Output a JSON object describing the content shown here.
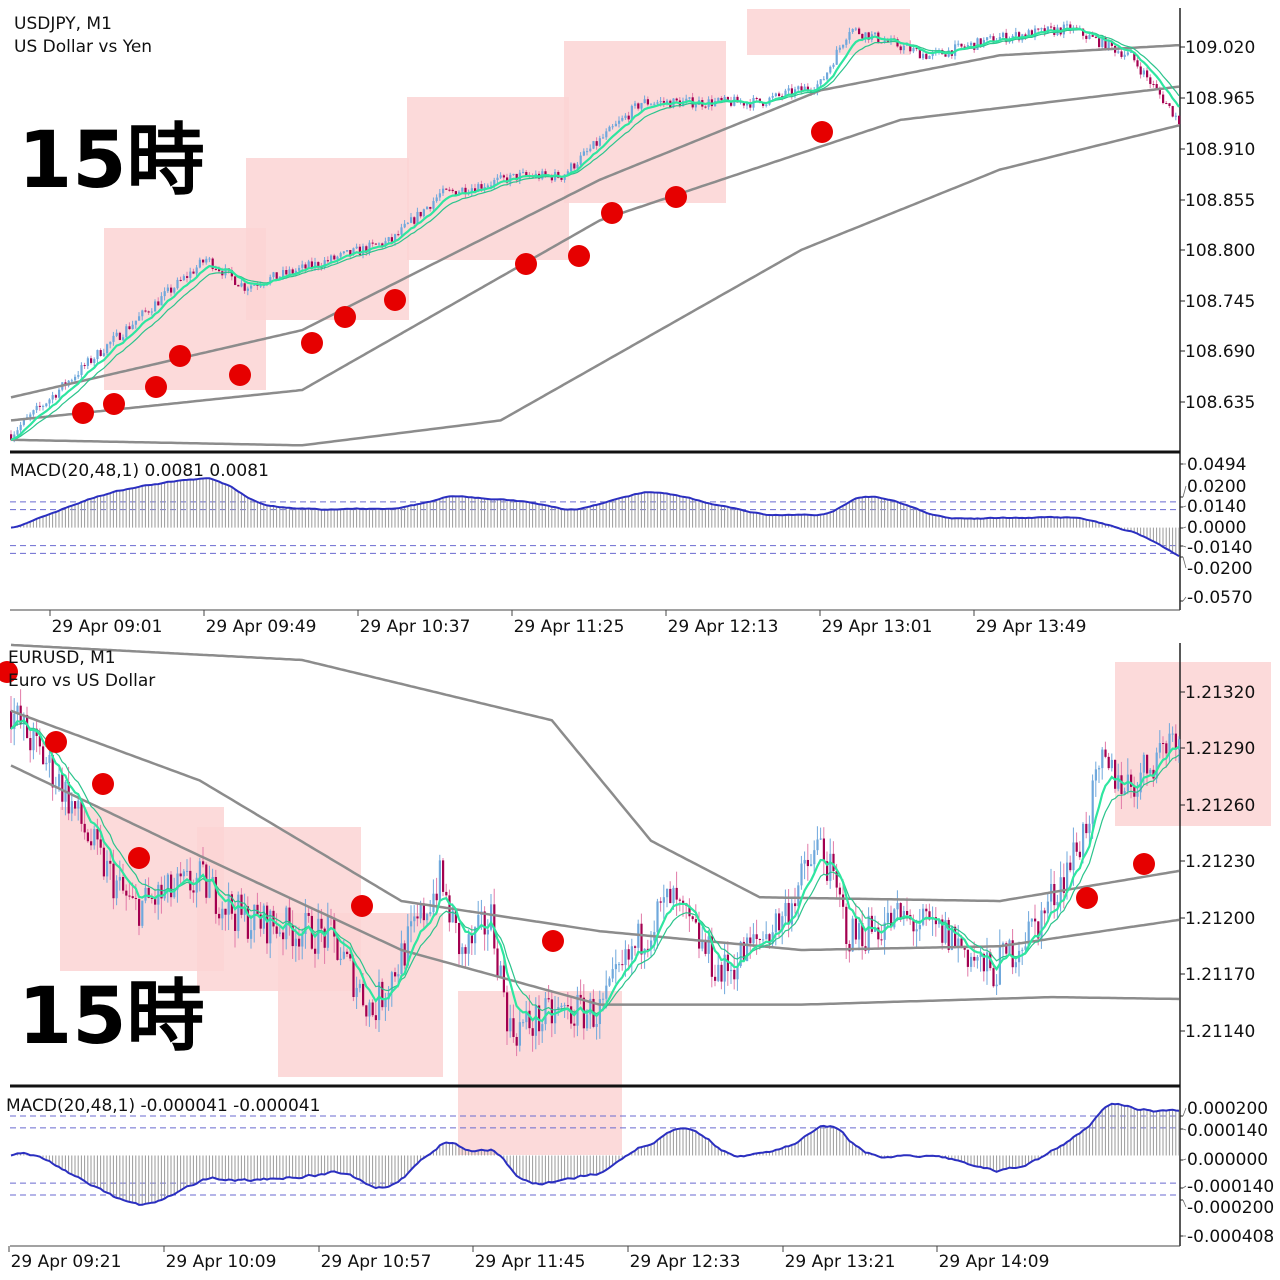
{
  "colors": {
    "up": "#6fa8dc",
    "down": "#a3004f",
    "wick_down": "#e27aa8",
    "ma_fast": "#2ee6a0",
    "ma_slow": "#2bc48c",
    "ma_gray": "#8c8c8c",
    "macd_line": "#2b2fc0",
    "hist": "#9a9a9a",
    "highlight": "#fbd3d3",
    "dot": "#e60000"
  },
  "overlay_text": "15時",
  "charts": [
    {
      "symbol": "USDJPY, M1",
      "description": "US Dollar vs Yen",
      "price_labels": [
        "109.020",
        "108.965",
        "108.910",
        "108.855",
        "108.800",
        "108.745",
        "108.690",
        "108.635"
      ],
      "price_range": [
        108.5653,
        109.0569
      ],
      "path": [
        [
          0,
          108.6
        ],
        [
          28,
          108.69
        ],
        [
          61,
          108.79
        ],
        [
          73,
          108.76
        ],
        [
          119,
          108.81
        ],
        [
          134,
          108.86
        ],
        [
          159,
          108.88
        ],
        [
          172,
          108.88
        ],
        [
          197,
          108.96
        ],
        [
          216,
          108.96
        ],
        [
          234,
          108.96
        ],
        [
          253,
          108.98
        ],
        [
          262,
          109.04
        ],
        [
          287,
          109.01
        ],
        [
          309,
          109.03
        ],
        [
          331,
          109.04
        ],
        [
          350,
          109.01
        ],
        [
          365,
          108.94
        ]
      ],
      "gray_lines": [
        [
          [
            0,
            108.64
          ],
          [
            91,
            108.713
          ],
          [
            184,
            108.876
          ],
          [
            253,
            108.973
          ],
          [
            309,
            109.011
          ],
          [
            365,
            109.022
          ]
        ],
        [
          [
            0,
            108.615
          ],
          [
            91,
            108.648
          ],
          [
            184,
            108.832
          ],
          [
            278,
            108.941
          ],
          [
            365,
            108.977
          ]
        ],
        [
          [
            0,
            108.594
          ],
          [
            91,
            108.588
          ],
          [
            153,
            108.615
          ],
          [
            247,
            108.8
          ],
          [
            309,
            108.887
          ],
          [
            365,
            108.935
          ]
        ]
      ],
      "noise": 0.006,
      "macd": {
        "title": "MACD(20,48,1) 0.0081 0.0081",
        "labels": [
          "0.0494",
          "0.0200",
          "0.0140",
          "0.0000",
          "-0.0140",
          "-0.0200",
          "-0.0570"
        ],
        "range": [
          -0.057,
          0.0494
        ],
        "levels": [
          0.02,
          0.014,
          -0.014,
          -0.02
        ],
        "unit": 1
      },
      "time_labels": [
        "29 Apr 09:01",
        "29 Apr 09:49",
        "29 Apr 10:37",
        "29 Apr 11:25",
        "29 Apr 12:13",
        "29 Apr 13:01",
        "29 Apr 13:49"
      ]
    },
    {
      "symbol": "EURUSD, M1",
      "description": "Euro vs US Dollar",
      "price_labels": [
        "1.21320",
        "1.21290",
        "1.21260",
        "1.21230",
        "1.21200",
        "1.21170",
        "1.21140"
      ],
      "price_range": [
        1.2111,
        1.21356
      ],
      "path": [
        [
          0,
          1.2131
        ],
        [
          16,
          1.2127
        ],
        [
          28,
          1.2123
        ],
        [
          38,
          1.21205
        ],
        [
          59,
          1.2122
        ],
        [
          72,
          1.212
        ],
        [
          100,
          1.2119
        ],
        [
          113,
          1.2115
        ],
        [
          134,
          1.2122
        ],
        [
          141,
          1.2118
        ],
        [
          150,
          1.212
        ],
        [
          156,
          1.2114
        ],
        [
          172,
          1.2115
        ],
        [
          184,
          1.2115
        ],
        [
          197,
          1.2119
        ],
        [
          206,
          1.2121
        ],
        [
          222,
          1.2117
        ],
        [
          241,
          1.212
        ],
        [
          253,
          1.2124
        ],
        [
          262,
          1.2119
        ],
        [
          278,
          1.212
        ],
        [
          294,
          1.2119
        ],
        [
          306,
          1.2117
        ],
        [
          322,
          1.212
        ],
        [
          334,
          1.2124
        ],
        [
          341,
          1.2128
        ],
        [
          350,
          1.2127
        ],
        [
          364,
          1.213
        ]
      ],
      "gray_lines": [
        [
          [
            0,
            1.21345
          ],
          [
            91,
            1.21337
          ],
          [
            169,
            1.21305
          ],
          [
            200,
            1.21241
          ],
          [
            234,
            1.21211
          ],
          [
            309,
            1.21209
          ],
          [
            365,
            1.21225
          ]
        ],
        [
          [
            0,
            1.2131
          ],
          [
            59,
            1.21273
          ],
          [
            122,
            1.21209
          ],
          [
            184,
            1.21193
          ],
          [
            247,
            1.21183
          ],
          [
            309,
            1.21185
          ],
          [
            365,
            1.21199
          ]
        ],
        [
          [
            0,
            1.21281
          ],
          [
            59,
            1.21233
          ],
          [
            122,
            1.21183
          ],
          [
            184,
            1.21154
          ],
          [
            247,
            1.21154
          ],
          [
            325,
            1.21158
          ],
          [
            365,
            1.21157
          ]
        ]
      ],
      "noise": 0.00011,
      "macd": {
        "title": "MACD(20,48,1) -0.000041 -0.000041",
        "labels": [
          "0.000200",
          "0.000140",
          "0.000000",
          "-0.000140",
          "-0.000200",
          "-0.000408"
        ],
        "range": [
          -0.000408,
          0.0002
        ],
        "levels": [
          0.0002,
          0.00014,
          -0.00014,
          -0.0002
        ],
        "unit": 1
      },
      "time_labels": [
        "29 Apr 09:21",
        "29 Apr 10:09",
        "29 Apr 10:57",
        "29 Apr 11:45",
        "29 Apr 12:33",
        "29 Apr 13:21",
        "29 Apr 14:09"
      ]
    }
  ]
}
